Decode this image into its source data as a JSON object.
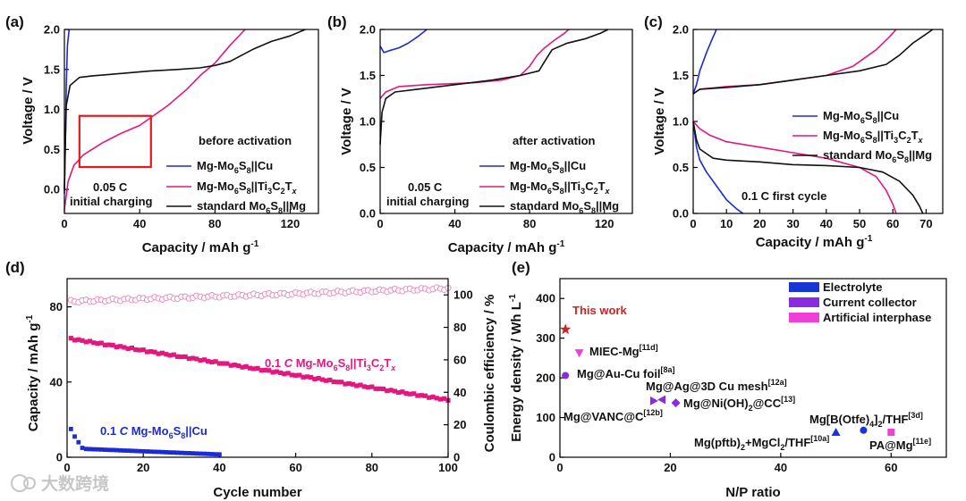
{
  "watermark": "大数跨境",
  "colors": {
    "cu": "#1c2bd6",
    "ti": "#e2187e",
    "std": "#111111",
    "ce": "#e886bb",
    "cuDots": "#1c2bd6",
    "star": "#d42020",
    "electrolyte": "#1a35d6",
    "collector": "#8a2be2",
    "interphase": "#f03fd6",
    "box": "#e01b1b"
  },
  "chart_data": [
    {
      "id": "a",
      "type": "line",
      "panel_label": "(a)",
      "xlabel": "Capacity / mAh g",
      "xlabel_sup": "-1",
      "ylabel": "Voltage / V",
      "xlim": [
        0,
        135
      ],
      "ylim": [
        -0.3,
        2.0
      ],
      "xticks": [
        0,
        40,
        80,
        120
      ],
      "yticks": [
        0.0,
        0.5,
        1.0,
        1.5,
        2.0
      ],
      "annotations": [
        "before activation",
        "0.05 C",
        "initial charging"
      ],
      "highlight_box_data": {
        "x": [
          8,
          46
        ],
        "y": [
          0.28,
          0.92
        ]
      },
      "series": [
        {
          "name": "Mg-Mo6S8||Cu",
          "color_key": "cu",
          "points": [
            [
              0,
              -0.05
            ],
            [
              0.5,
              0.6
            ],
            [
              1,
              1.3
            ],
            [
              1.6,
              1.8
            ],
            [
              2.5,
              2.0
            ]
          ]
        },
        {
          "name": "Mg-Mo6S8||Ti3C2Tx",
          "color_key": "ti",
          "points": [
            [
              0,
              -0.25
            ],
            [
              2,
              0.1
            ],
            [
              5,
              0.3
            ],
            [
              10,
              0.43
            ],
            [
              20,
              0.58
            ],
            [
              30,
              0.7
            ],
            [
              40,
              0.8
            ],
            [
              46,
              0.9
            ],
            [
              55,
              1.05
            ],
            [
              65,
              1.25
            ],
            [
              72,
              1.42
            ],
            [
              80,
              1.58
            ],
            [
              88,
              1.8
            ],
            [
              94,
              1.95
            ],
            [
              96,
              2.0
            ]
          ]
        },
        {
          "name": "standard Mo6S8||Mg",
          "color_key": "std",
          "points": [
            [
              0,
              0.0
            ],
            [
              0.5,
              0.6
            ],
            [
              1,
              1.05
            ],
            [
              3,
              1.3
            ],
            [
              8,
              1.4
            ],
            [
              15,
              1.42
            ],
            [
              30,
              1.45
            ],
            [
              45,
              1.48
            ],
            [
              60,
              1.5
            ],
            [
              72,
              1.52
            ],
            [
              80,
              1.55
            ],
            [
              88,
              1.6
            ],
            [
              100,
              1.75
            ],
            [
              110,
              1.85
            ],
            [
              120,
              1.92
            ],
            [
              128,
              2.0
            ]
          ]
        }
      ]
    },
    {
      "id": "b",
      "type": "line",
      "panel_label": "(b)",
      "xlabel": "Capacity / mAh g",
      "xlabel_sup": "-1",
      "ylabel": "Voltage / V",
      "xlim": [
        0,
        135
      ],
      "ylim": [
        0.0,
        2.0
      ],
      "xticks": [
        0,
        40,
        80,
        120
      ],
      "yticks": [
        0.0,
        0.5,
        1.0,
        1.5,
        2.0
      ],
      "annotations": [
        "after activation",
        "0.05 C",
        "initial charging"
      ],
      "series": [
        {
          "name": "Mg-Mo6S8||Cu",
          "color_key": "cu",
          "points": [
            [
              0,
              1.82
            ],
            [
              2,
              1.75
            ],
            [
              5,
              1.77
            ],
            [
              10,
              1.8
            ],
            [
              15,
              1.85
            ],
            [
              20,
              1.92
            ],
            [
              25,
              2.0
            ]
          ]
        },
        {
          "name": "Mg-Mo6S8||Ti3C2Tx",
          "color_key": "ti",
          "points": [
            [
              0,
              1.25
            ],
            [
              3,
              1.32
            ],
            [
              10,
              1.38
            ],
            [
              25,
              1.4
            ],
            [
              50,
              1.42
            ],
            [
              65,
              1.45
            ],
            [
              75,
              1.5
            ],
            [
              80,
              1.6
            ],
            [
              84,
              1.72
            ],
            [
              88,
              1.8
            ],
            [
              93,
              1.88
            ],
            [
              98,
              1.95
            ],
            [
              101,
              2.0
            ]
          ]
        },
        {
          "name": "standard Mo6S8||Mg",
          "color_key": "std",
          "points": [
            [
              0,
              0.75
            ],
            [
              1,
              1.1
            ],
            [
              3,
              1.25
            ],
            [
              8,
              1.32
            ],
            [
              20,
              1.35
            ],
            [
              40,
              1.4
            ],
            [
              60,
              1.45
            ],
            [
              75,
              1.5
            ],
            [
              85,
              1.55
            ],
            [
              88,
              1.65
            ],
            [
              92,
              1.78
            ],
            [
              100,
              1.85
            ],
            [
              110,
              1.9
            ],
            [
              118,
              1.96
            ],
            [
              122,
              2.0
            ]
          ]
        }
      ]
    },
    {
      "id": "c",
      "type": "line",
      "panel_label": "(c)",
      "xlabel": "Capacity / mAh g",
      "xlabel_sup": "-1",
      "ylabel": "Voltage / V",
      "xlim": [
        0,
        75
      ],
      "ylim": [
        0.0,
        2.0
      ],
      "xticks": [
        0,
        10,
        20,
        30,
        40,
        50,
        60,
        70
      ],
      "yticks": [
        0.0,
        0.5,
        1.0,
        1.5,
        2.0
      ],
      "annotations": [
        "0.1 C first cycle"
      ],
      "series": [
        {
          "name": "Mg-Mo6S8||Cu (charge)",
          "legend": "Mg-Mo6S8||Cu",
          "color_key": "cu",
          "points": [
            [
              0,
              1.3
            ],
            [
              1,
              1.4
            ],
            [
              2,
              1.55
            ],
            [
              4,
              1.75
            ],
            [
              6,
              1.92
            ],
            [
              7,
              2.0
            ]
          ]
        },
        {
          "name": "Mg-Mo6S8||Cu (discharge)",
          "color_key": "cu",
          "points": [
            [
              0,
              1.0
            ],
            [
              1,
              0.72
            ],
            [
              2,
              0.58
            ],
            [
              4,
              0.45
            ],
            [
              7,
              0.3
            ],
            [
              10,
              0.15
            ],
            [
              13,
              0.05
            ],
            [
              15,
              0.0
            ]
          ]
        },
        {
          "name": "Mg-Mo6S8||Ti3C2Tx (charge)",
          "legend": "Mg-Mo6S8||Ti3C2Tx",
          "color_key": "ti",
          "points": [
            [
              0,
              1.3
            ],
            [
              2,
              1.35
            ],
            [
              10,
              1.38
            ],
            [
              20,
              1.4
            ],
            [
              30,
              1.45
            ],
            [
              40,
              1.5
            ],
            [
              48,
              1.6
            ],
            [
              55,
              1.78
            ],
            [
              59,
              1.92
            ],
            [
              61,
              2.0
            ]
          ]
        },
        {
          "name": "Mg-Mo6S8||Ti3C2Tx (discharge)",
          "color_key": "ti",
          "points": [
            [
              0,
              1.0
            ],
            [
              2,
              0.92
            ],
            [
              5,
              0.85
            ],
            [
              10,
              0.78
            ],
            [
              20,
              0.72
            ],
            [
              30,
              0.66
            ],
            [
              40,
              0.6
            ],
            [
              50,
              0.5
            ],
            [
              55,
              0.4
            ],
            [
              58,
              0.25
            ],
            [
              60,
              0.1
            ],
            [
              61,
              0.0
            ]
          ]
        },
        {
          "name": "standard Mo6S8||Mg (charge)",
          "legend": "standard Mo6S8||Mg",
          "color_key": "std",
          "points": [
            [
              0,
              1.3
            ],
            [
              2,
              1.35
            ],
            [
              10,
              1.37
            ],
            [
              20,
              1.4
            ],
            [
              30,
              1.45
            ],
            [
              40,
              1.5
            ],
            [
              50,
              1.55
            ],
            [
              58,
              1.62
            ],
            [
              62,
              1.72
            ],
            [
              66,
              1.85
            ],
            [
              70,
              1.95
            ],
            [
              72,
              2.0
            ]
          ]
        },
        {
          "name": "standard Mo6S8||Mg (discharge)",
          "color_key": "std",
          "points": [
            [
              0,
              1.0
            ],
            [
              1,
              0.8
            ],
            [
              2,
              0.7
            ],
            [
              4,
              0.65
            ],
            [
              6,
              0.6
            ],
            [
              10,
              0.58
            ],
            [
              20,
              0.56
            ],
            [
              30,
              0.53
            ],
            [
              40,
              0.52
            ],
            [
              50,
              0.5
            ],
            [
              57,
              0.45
            ],
            [
              62,
              0.35
            ],
            [
              66,
              0.2
            ],
            [
              68,
              0.08
            ],
            [
              69,
              0.0
            ]
          ]
        }
      ]
    },
    {
      "id": "d",
      "type": "scatter",
      "panel_label": "(d)",
      "xlabel": "Cycle number",
      "ylabel": "Capacity / mAh g",
      "ylabel_sup": "-1",
      "ylabel_right": "Coulombic efficiency / %",
      "xlim": [
        0,
        100
      ],
      "ylim": [
        0,
        95
      ],
      "ylim_right": [
        0,
        110
      ],
      "xticks": [
        0,
        20,
        40,
        60,
        80,
        100
      ],
      "yticks": [
        0,
        40,
        80
      ],
      "yticks_right": [
        0,
        20,
        40,
        60,
        80,
        100
      ],
      "annotations": [
        "0.1 C Mg-Mo6S8||Ti3C2Tx",
        "0.1 C Mg-Mo6S8||Cu"
      ],
      "series": [
        {
          "name": "0.1 C Mg-Mo6S8||Ti3C2Tx capacity",
          "color_key": "ti",
          "cycles": [
            1,
            100
          ],
          "start": 63,
          "end": 30.5,
          "marker": "square"
        },
        {
          "name": "Coulombic efficiency (right axis)",
          "color_key": "ce",
          "cycles": [
            1,
            100
          ],
          "start": 96,
          "end": 104,
          "marker": "open-circle"
        },
        {
          "name": "0.1 C Mg-Mo6S8||Cu capacity",
          "color_key": "cuDots",
          "cycles": [
            1,
            40
          ],
          "values_first": [
            15,
            11,
            8,
            5
          ],
          "tail_start": 4.5,
          "tail_end": 1.5,
          "marker": "square"
        }
      ]
    },
    {
      "id": "e",
      "type": "scatter",
      "panel_label": "(e)",
      "xlabel": "N/P ratio",
      "ylabel": "Energy density / Wh L",
      "ylabel_sup": "-1",
      "xlim": [
        0,
        70
      ],
      "ylim": [
        0,
        450
      ],
      "xticks": [
        0,
        20,
        40,
        60
      ],
      "yticks": [
        0,
        100,
        200,
        300,
        400
      ],
      "legend": [
        "Electrolyte",
        "Current collector",
        "Artificial interphase"
      ],
      "points": [
        {
          "label": "This work",
          "x": 1,
          "y": 322,
          "marker": "star",
          "color_key": "star"
        },
        {
          "label": "MIEC-Mg",
          "ref": "[11d]",
          "x": 3.5,
          "y": 263,
          "marker": "tri-down",
          "color_key": "interphase"
        },
        {
          "label": "Mg@Au-Cu foil",
          "ref": "[8a]",
          "x": 1,
          "y": 206,
          "marker": "circle",
          "color_key": "collector"
        },
        {
          "label": "Mg@Ag@3D Cu mesh",
          "ref": "[12a]",
          "x": 18.5,
          "y": 145,
          "marker": "tri-left",
          "color_key": "collector"
        },
        {
          "label": "Mg@VANC@C",
          "ref": "[12b]",
          "x": 17,
          "y": 142,
          "marker": "tri-right",
          "color_key": "collector"
        },
        {
          "label": "Mg@Ni(OH)2@CC",
          "ref": "[13]",
          "x": 21,
          "y": 137,
          "marker": "diamond",
          "color_key": "collector"
        },
        {
          "label": "Mg(pftb)2+MgCl2/THF",
          "ref": "[10a]",
          "x": 50,
          "y": 63,
          "marker": "tri-up",
          "color_key": "electrolyte"
        },
        {
          "label": "Mg[B(Otfe)4]2/THF",
          "ref": "[3d]",
          "x": 55,
          "y": 68,
          "marker": "circle",
          "color_key": "electrolyte"
        },
        {
          "label": "PA@Mg",
          "ref": "[11e]",
          "x": 60,
          "y": 63,
          "marker": "square",
          "color_key": "interphase"
        }
      ]
    }
  ]
}
